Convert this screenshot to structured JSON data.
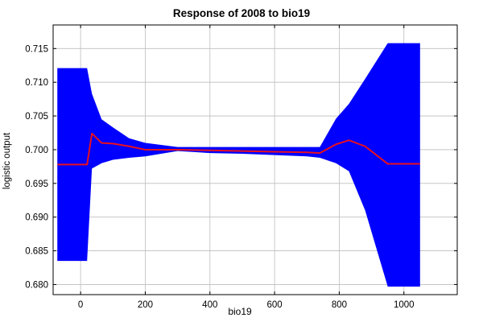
{
  "chart_data": {
    "type": "area",
    "title": "Response of 2008 to bio19",
    "xlabel": "bio19",
    "ylabel": "logistic output",
    "xlim": [
      -85,
      1165
    ],
    "ylim": [
      0.6785,
      0.7185
    ],
    "xticks": [
      0,
      200,
      400,
      600,
      800,
      1000
    ],
    "yticks": [
      0.68,
      0.685,
      0.69,
      0.695,
      0.7,
      0.705,
      0.71,
      0.715
    ],
    "grid": true,
    "band_color": "#0000ff",
    "line_color": "#e8101e",
    "series": [
      {
        "kind": "band-upper",
        "x": [
          -72,
          20,
          35,
          65,
          100,
          150,
          200,
          300,
          400,
          500,
          600,
          700,
          740,
          790,
          830,
          880,
          950,
          1050
        ],
        "y": [
          0.7121,
          0.7121,
          0.7083,
          0.7045,
          0.7033,
          0.7017,
          0.701,
          0.7004,
          0.7004,
          0.7004,
          0.7004,
          0.7004,
          0.7004,
          0.7046,
          0.7068,
          0.7105,
          0.7158,
          0.7158
        ]
      },
      {
        "kind": "band-lower",
        "x": [
          -72,
          20,
          35,
          65,
          100,
          150,
          200,
          300,
          400,
          500,
          600,
          700,
          740,
          790,
          830,
          880,
          950,
          1050
        ],
        "y": [
          0.6835,
          0.6835,
          0.6972,
          0.698,
          0.6985,
          0.6988,
          0.699,
          0.6998,
          0.6995,
          0.6994,
          0.6992,
          0.699,
          0.6988,
          0.698,
          0.6968,
          0.691,
          0.6797,
          0.6797
        ]
      },
      {
        "kind": "mean",
        "x": [
          -72,
          20,
          35,
          65,
          100,
          150,
          200,
          300,
          400,
          500,
          600,
          700,
          740,
          790,
          830,
          880,
          950,
          1050
        ],
        "y": [
          0.6978,
          0.6978,
          0.7024,
          0.701,
          0.7009,
          0.7005,
          0.7,
          0.7,
          0.6999,
          0.6998,
          0.6997,
          0.6996,
          0.6995,
          0.7008,
          0.7014,
          0.7005,
          0.6979,
          0.6979
        ]
      }
    ]
  }
}
